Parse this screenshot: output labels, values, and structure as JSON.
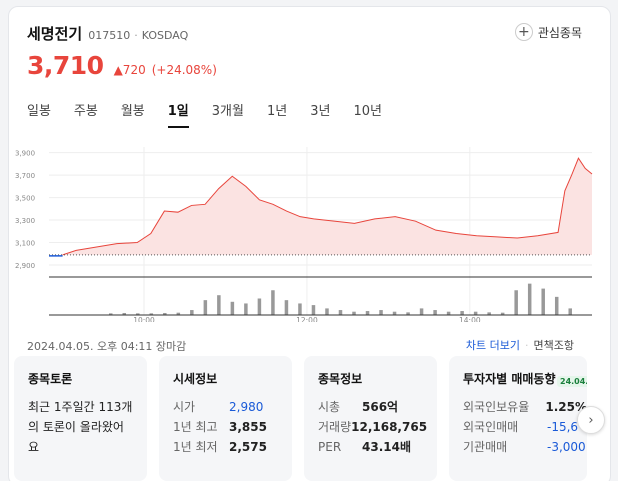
{
  "stock": {
    "name": "세명전기",
    "code": "017510",
    "market": "KOSDAQ",
    "watch_label": "관심종목",
    "price": "3,710",
    "change": "▲720",
    "change_pct": "(+24.08%)"
  },
  "tabs": [
    {
      "label": "일봉",
      "active": false
    },
    {
      "label": "주봉",
      "active": false
    },
    {
      "label": "월봉",
      "active": false
    },
    {
      "label": "1일",
      "active": true
    },
    {
      "label": "3개월",
      "active": false
    },
    {
      "label": "1년",
      "active": false
    },
    {
      "label": "3년",
      "active": false
    },
    {
      "label": "10년",
      "active": false
    }
  ],
  "chart_data": {
    "type": "area",
    "ylim": [
      2900,
      3950
    ],
    "y_ticks": [
      2900,
      3100,
      3300,
      3500,
      3700,
      3900
    ],
    "y_tick_labels": [
      "2,900",
      "3,100",
      "3,300",
      "3,500",
      "3,700",
      "3,900"
    ],
    "x_ticks": [
      "10:00",
      "12:00",
      "14:00"
    ],
    "base_value": 2990,
    "colors": {
      "line": "#e8453c",
      "fill": "#fbe3e2",
      "pre_line": "#1a5ad7",
      "volume": "#999999"
    },
    "price_series": [
      {
        "t": "09:00",
        "v": 2990
      },
      {
        "t": "09:10",
        "v": 3030
      },
      {
        "t": "09:25",
        "v": 3060
      },
      {
        "t": "09:40",
        "v": 3090
      },
      {
        "t": "09:55",
        "v": 3100
      },
      {
        "t": "10:05",
        "v": 3180
      },
      {
        "t": "10:15",
        "v": 3380
      },
      {
        "t": "10:25",
        "v": 3370
      },
      {
        "t": "10:35",
        "v": 3430
      },
      {
        "t": "10:45",
        "v": 3440
      },
      {
        "t": "10:55",
        "v": 3580
      },
      {
        "t": "11:05",
        "v": 3690
      },
      {
        "t": "11:15",
        "v": 3600
      },
      {
        "t": "11:25",
        "v": 3480
      },
      {
        "t": "11:35",
        "v": 3440
      },
      {
        "t": "11:45",
        "v": 3380
      },
      {
        "t": "11:55",
        "v": 3330
      },
      {
        "t": "12:05",
        "v": 3310
      },
      {
        "t": "12:20",
        "v": 3290
      },
      {
        "t": "12:35",
        "v": 3270
      },
      {
        "t": "12:50",
        "v": 3310
      },
      {
        "t": "13:05",
        "v": 3330
      },
      {
        "t": "13:20",
        "v": 3290
      },
      {
        "t": "13:35",
        "v": 3210
      },
      {
        "t": "13:50",
        "v": 3180
      },
      {
        "t": "14:05",
        "v": 3160
      },
      {
        "t": "14:20",
        "v": 3150
      },
      {
        "t": "14:35",
        "v": 3140
      },
      {
        "t": "14:50",
        "v": 3160
      },
      {
        "t": "15:05",
        "v": 3190
      },
      {
        "t": "15:10",
        "v": 3560
      },
      {
        "t": "15:15",
        "v": 3700
      },
      {
        "t": "15:20",
        "v": 3850
      },
      {
        "t": "15:25",
        "v": 3760
      },
      {
        "t": "15:30",
        "v": 3710
      }
    ],
    "volume_series": [
      0.05,
      0.06,
      0.05,
      0.05,
      0.06,
      0.07,
      0.15,
      0.45,
      0.6,
      0.4,
      0.35,
      0.5,
      0.75,
      0.45,
      0.35,
      0.3,
      0.2,
      0.15,
      0.1,
      0.12,
      0.15,
      0.1,
      0.08,
      0.2,
      0.15,
      0.1,
      0.12,
      0.1,
      0.08,
      0.07,
      0.75,
      0.95,
      0.8,
      0.55,
      0.2
    ]
  },
  "timestamp": "2024.04.05. 오후 04:11 장마감",
  "chart_more_label": "차트 더보기",
  "disclaimer_label": "면책조항",
  "panels": {
    "forum": {
      "title": "종목토론",
      "text": "최근 1주일간 113개의 토론이 올라왔어요"
    },
    "market_info": {
      "title": "시세정보",
      "rows": [
        {
          "k": "시가",
          "v": "2,980"
        },
        {
          "k": "1년 최고",
          "v": "3,855"
        },
        {
          "k": "1년 최저",
          "v": "2,575"
        }
      ]
    },
    "stock_info": {
      "title": "종목정보",
      "rows": [
        {
          "k": "시총",
          "v": "566억"
        },
        {
          "k": "거래량",
          "v": "12,168,765"
        },
        {
          "k": "PER",
          "v": "43.14배"
        }
      ]
    },
    "investor": {
      "title": "투자자별 매매동향",
      "date": "24.04.0",
      "rows": [
        {
          "k": "외국인보유율",
          "v": "1.25%"
        },
        {
          "k": "외국인매매",
          "v": "-15,6"
        },
        {
          "k": "기관매매",
          "v": "-3,000"
        }
      ]
    }
  },
  "next_label": "›"
}
